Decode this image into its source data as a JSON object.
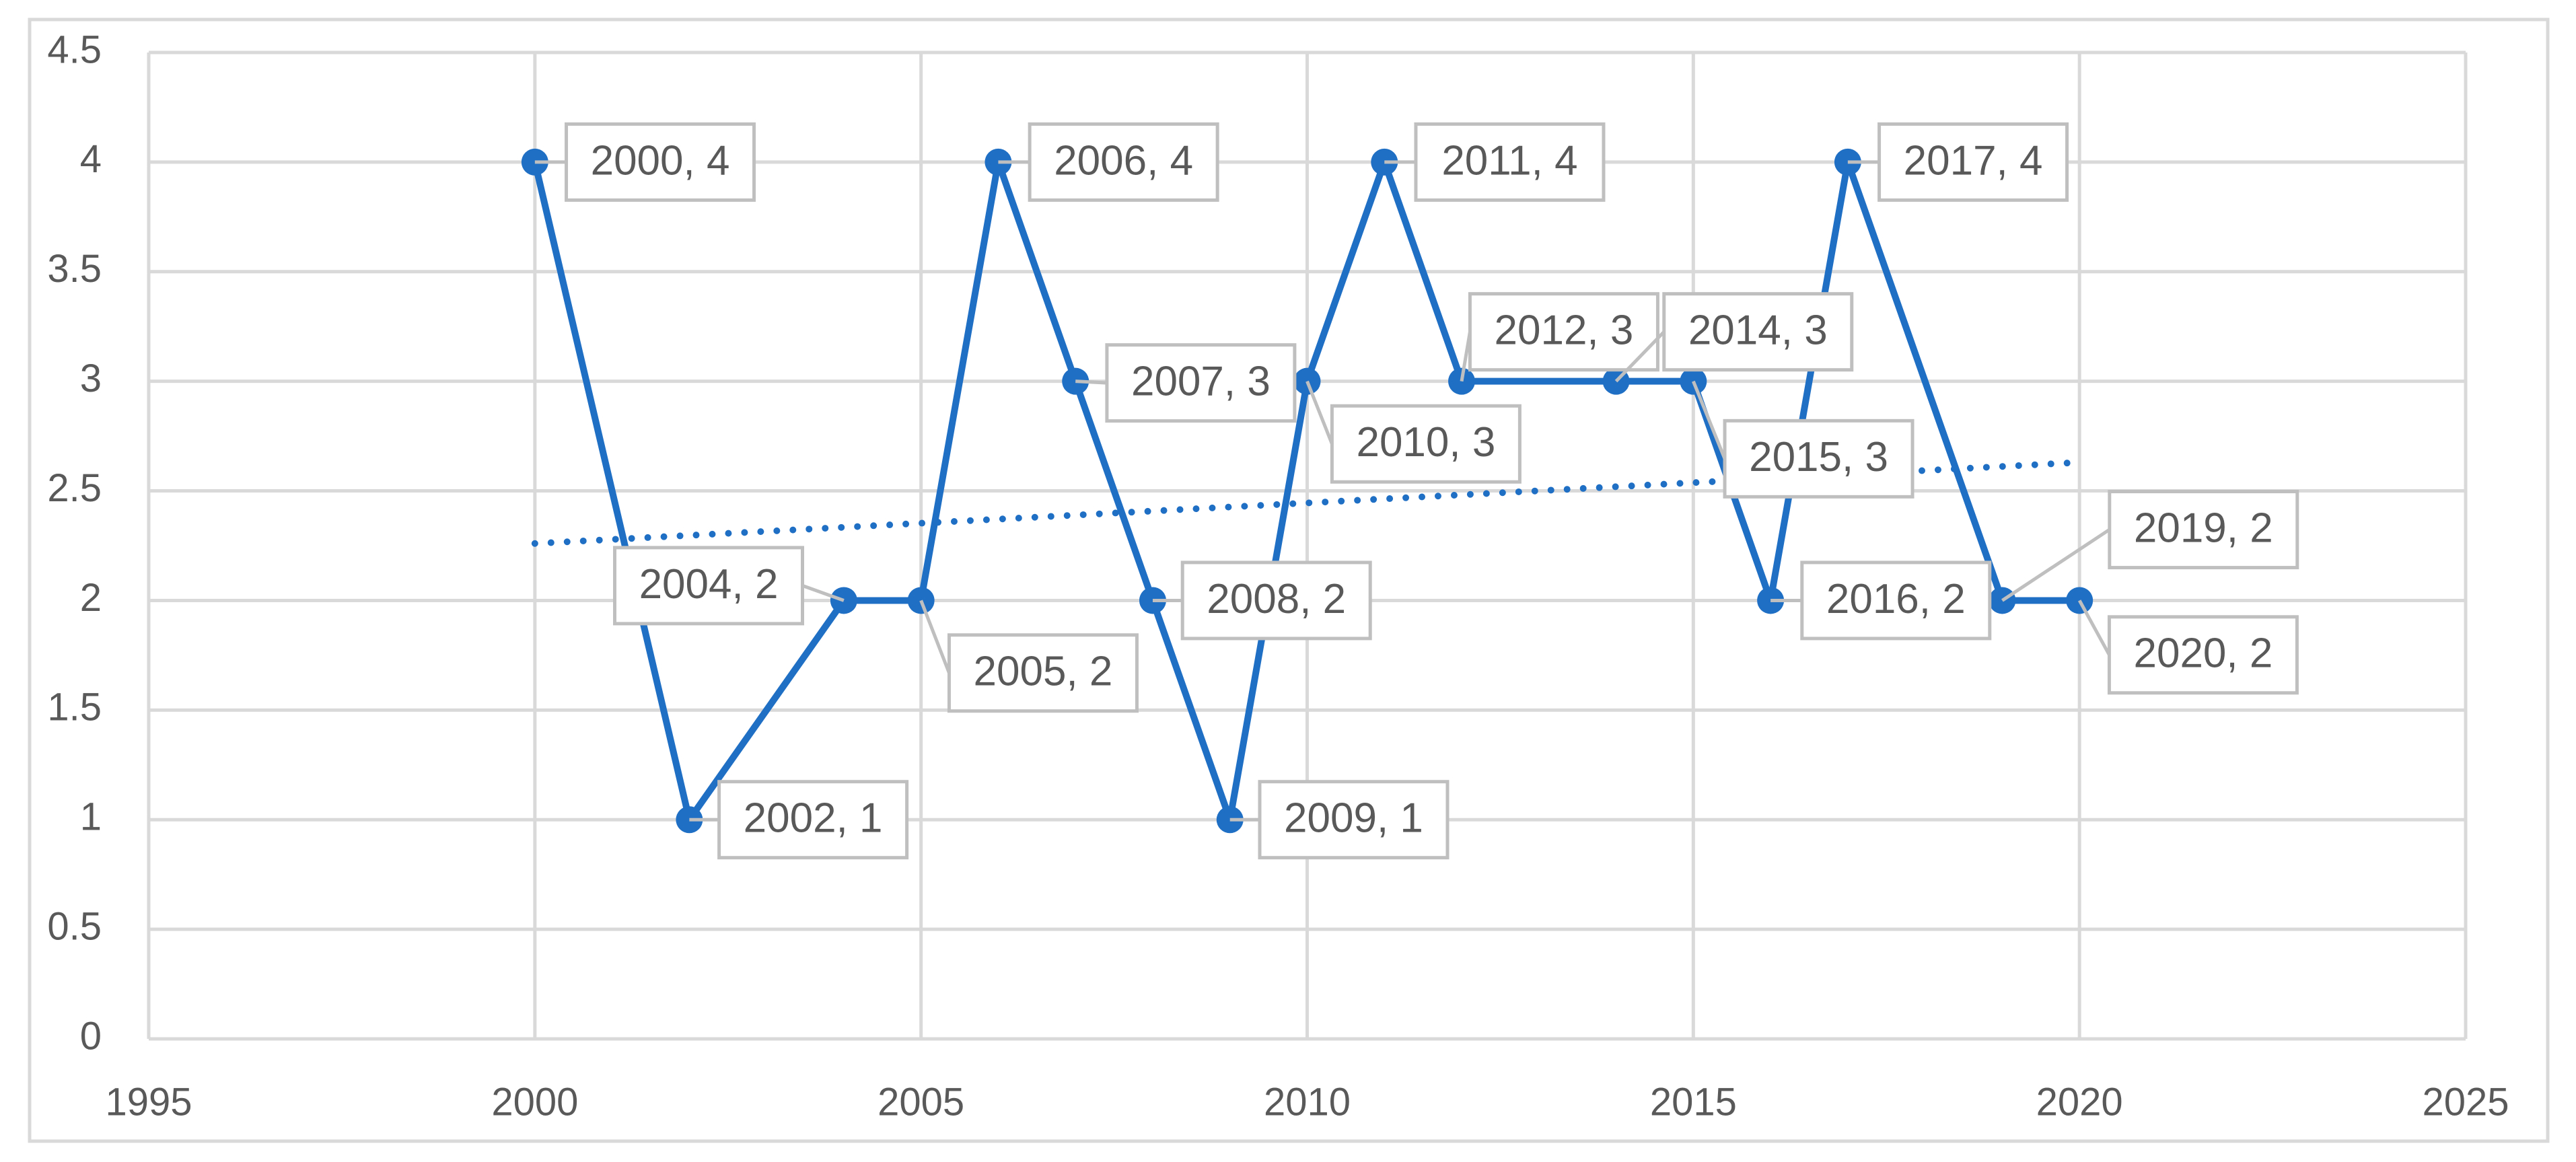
{
  "chart_data": {
    "type": "line",
    "x": [
      2000,
      2002,
      2004,
      2005,
      2006,
      2007,
      2008,
      2009,
      2010,
      2011,
      2012,
      2014,
      2015,
      2016,
      2017,
      2019,
      2020
    ],
    "series": [
      {
        "color": "#1f6fc5",
        "values": [
          4,
          1,
          2,
          2,
          4,
          3,
          2,
          1,
          3,
          4,
          3,
          3,
          3,
          2,
          4,
          2,
          2
        ],
        "value_labels": [
          "2000, 4",
          "2002, 1",
          "2004, 2",
          "2005, 2",
          "2006, 4",
          "2007, 3",
          "2008, 2",
          "2009, 1",
          "2010, 3",
          "2011, 4",
          "2012, 3",
          "2014, 3",
          "2015, 3",
          "2016, 2",
          "2017, 4",
          "2019, 2",
          "2020, 2"
        ]
      }
    ],
    "trendline": {
      "x": [
        2000,
        2020
      ],
      "values": [
        2.26,
        2.63
      ],
      "color": "#1f6fc5",
      "style": "dotted"
    },
    "xlim": [
      1995,
      2025
    ],
    "xticks": [
      1995,
      2000,
      2005,
      2010,
      2015,
      2020,
      2025
    ],
    "ylim": [
      0,
      4.5
    ],
    "yticks": [
      0,
      0.5,
      1,
      1.5,
      2,
      2.5,
      3,
      3.5,
      4,
      4.5
    ],
    "grid": true
  }
}
